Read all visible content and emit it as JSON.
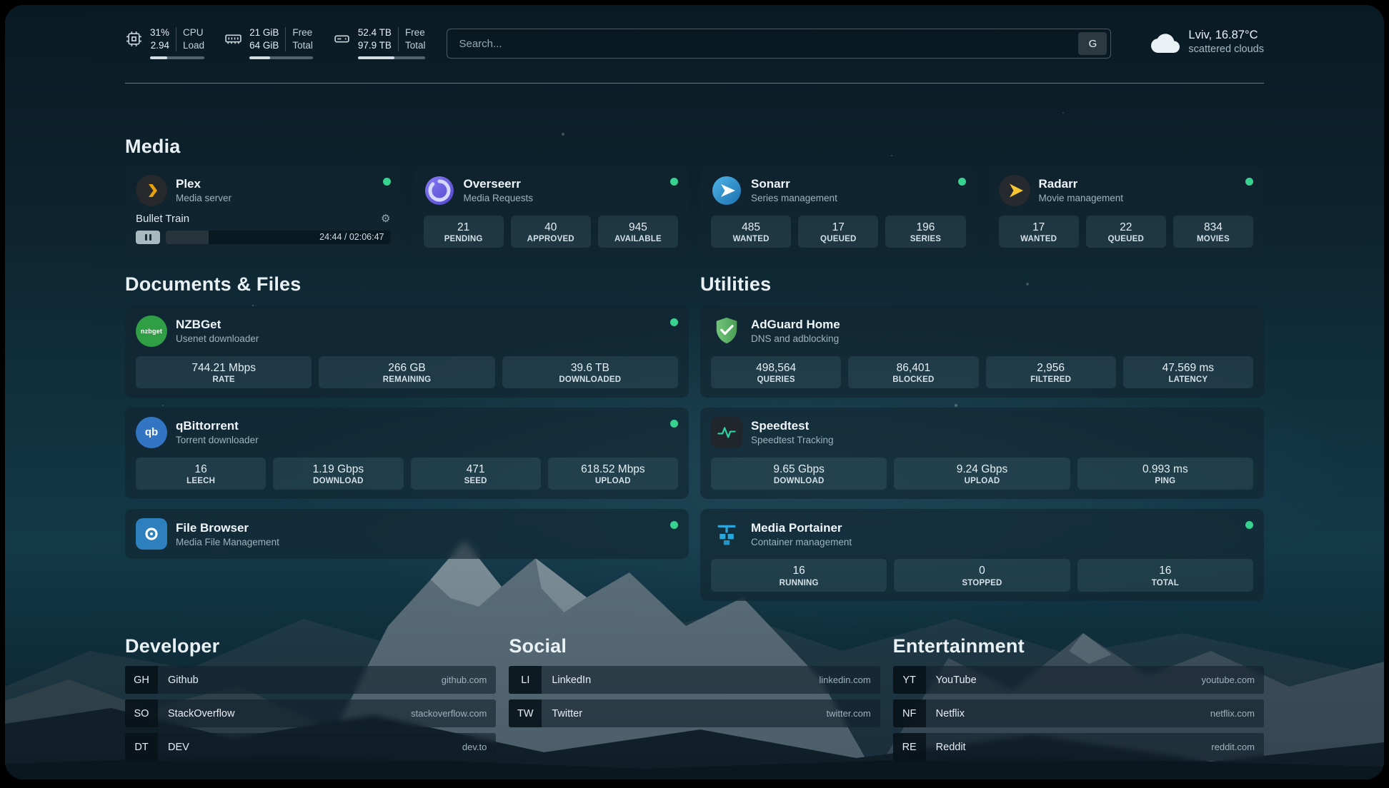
{
  "topbar": {
    "cpu": {
      "icon": "cpu-icon",
      "value_top": "31%",
      "value_bottom": "2.94",
      "label_top": "CPU",
      "label_bottom": "Load",
      "progress": 31
    },
    "memory": {
      "icon": "memory-icon",
      "value_top": "21 GiB",
      "value_bottom": "64 GiB",
      "label_top": "Free",
      "label_bottom": "Total",
      "progress": 33
    },
    "disk": {
      "icon": "disk-icon",
      "value_top": "52.4 TB",
      "value_bottom": "97.9 TB",
      "label_top": "Free",
      "label_bottom": "Total",
      "progress": 54
    },
    "search": {
      "placeholder": "Search...",
      "provider": "G"
    },
    "weather": {
      "icon": "cloud-icon",
      "location": "Lviv, 16.87°C",
      "condition": "scattered clouds"
    }
  },
  "colors": {
    "status_online": "#37d290"
  },
  "sections": {
    "media": {
      "heading": "Media",
      "plex": {
        "name": "Plex",
        "subtitle": "Media server",
        "icon": "plex-icon",
        "now_playing": {
          "title": "Bullet Train",
          "time": "24:44 / 02:06:47",
          "progress": 19
        }
      },
      "overseerr": {
        "name": "Overseerr",
        "subtitle": "Media Requests",
        "icon": "overseerr-icon",
        "stats": [
          {
            "value": "21",
            "label": "PENDING"
          },
          {
            "value": "40",
            "label": "APPROVED"
          },
          {
            "value": "945",
            "label": "AVAILABLE"
          }
        ]
      },
      "sonarr": {
        "name": "Sonarr",
        "subtitle": "Series management",
        "icon": "sonarr-icon",
        "stats": [
          {
            "value": "485",
            "label": "WANTED"
          },
          {
            "value": "17",
            "label": "QUEUED"
          },
          {
            "value": "196",
            "label": "SERIES"
          }
        ]
      },
      "radarr": {
        "name": "Radarr",
        "subtitle": "Movie management",
        "icon": "radarr-icon",
        "stats": [
          {
            "value": "17",
            "label": "WANTED"
          },
          {
            "value": "22",
            "label": "QUEUED"
          },
          {
            "value": "834",
            "label": "MOVIES"
          }
        ]
      }
    },
    "documents": {
      "heading": "Documents & Files",
      "nzbget": {
        "name": "NZBGet",
        "subtitle": "Usenet downloader",
        "icon": "nzbget-icon",
        "icon_text": "nzbget",
        "stats": [
          {
            "value": "744.21 Mbps",
            "label": "RATE"
          },
          {
            "value": "266 GB",
            "label": "REMAINING"
          },
          {
            "value": "39.6 TB",
            "label": "DOWNLOADED"
          }
        ]
      },
      "qbittorrent": {
        "name": "qBittorrent",
        "subtitle": "Torrent downloader",
        "icon": "qbittorrent-icon",
        "icon_text": "qb",
        "stats": [
          {
            "value": "16",
            "label": "LEECH"
          },
          {
            "value": "1.19 Gbps",
            "label": "DOWNLOAD"
          },
          {
            "value": "471",
            "label": "SEED"
          },
          {
            "value": "618.52 Mbps",
            "label": "UPLOAD"
          }
        ]
      },
      "filebrowser": {
        "name": "File Browser",
        "subtitle": "Media File Management",
        "icon": "filebrowser-icon"
      }
    },
    "utilities": {
      "heading": "Utilities",
      "adguard": {
        "name": "AdGuard Home",
        "subtitle": "DNS and adblocking",
        "icon": "adguard-shield-icon",
        "stats": [
          {
            "value": "498,564",
            "label": "QUERIES"
          },
          {
            "value": "86,401",
            "label": "BLOCKED"
          },
          {
            "value": "2,956",
            "label": "FILTERED"
          },
          {
            "value": "47.569 ms",
            "label": "LATENCY"
          }
        ]
      },
      "speedtest": {
        "name": "Speedtest",
        "subtitle": "Speedtest Tracking",
        "icon": "speedtest-pulse-icon",
        "stats": [
          {
            "value": "9.65 Gbps",
            "label": "DOWNLOAD"
          },
          {
            "value": "9.24 Gbps",
            "label": "UPLOAD"
          },
          {
            "value": "0.993 ms",
            "label": "PING"
          }
        ]
      },
      "portainer": {
        "name": "Media Portainer",
        "subtitle": "Container management",
        "icon": "portainer-icon",
        "stats": [
          {
            "value": "16",
            "label": "RUNNING"
          },
          {
            "value": "0",
            "label": "STOPPED"
          },
          {
            "value": "16",
            "label": "TOTAL"
          }
        ]
      }
    },
    "bookmarks": {
      "developer": {
        "heading": "Developer",
        "items": [
          {
            "abbr": "GH",
            "name": "Github",
            "domain": "github.com"
          },
          {
            "abbr": "SO",
            "name": "StackOverflow",
            "domain": "stackoverflow.com"
          },
          {
            "abbr": "DT",
            "name": "DEV",
            "domain": "dev.to"
          }
        ]
      },
      "social": {
        "heading": "Social",
        "items": [
          {
            "abbr": "LI",
            "name": "LinkedIn",
            "domain": "linkedin.com"
          },
          {
            "abbr": "TW",
            "name": "Twitter",
            "domain": "twitter.com"
          }
        ]
      },
      "entertainment": {
        "heading": "Entertainment",
        "items": [
          {
            "abbr": "YT",
            "name": "YouTube",
            "domain": "youtube.com"
          },
          {
            "abbr": "NF",
            "name": "Netflix",
            "domain": "netflix.com"
          },
          {
            "abbr": "RE",
            "name": "Reddit",
            "domain": "reddit.com"
          }
        ]
      }
    }
  }
}
